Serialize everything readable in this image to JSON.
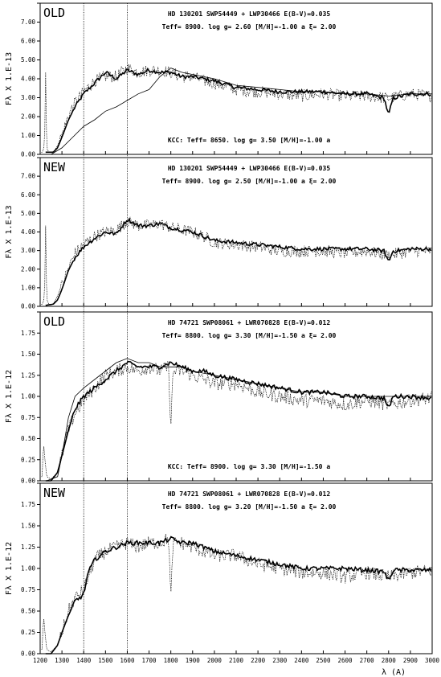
{
  "chart_data": {
    "type": "line",
    "xlabel": "λ (A)",
    "xlim": [
      1200,
      3000
    ],
    "x_ticks": [
      "1200",
      "1300",
      "1400",
      "1500",
      "1600",
      "1700",
      "1800",
      "1900",
      "2000",
      "2100",
      "2200",
      "2300",
      "2400",
      "2500",
      "2600",
      "2700",
      "2800",
      "2900",
      "3000"
    ],
    "vlines": [
      1400,
      1600
    ],
    "panels": [
      {
        "tag": "OLD",
        "ylabel": [
          "F",
          "λ",
          "X",
          "1.E-13"
        ],
        "ylim": [
          0,
          7
        ],
        "y_ticks": [
          "0.00",
          "1.00",
          "2.00",
          "3.00",
          "4.00",
          "5.00",
          "6.00",
          "7.00"
        ],
        "info": [
          "HD 130201 SWP54449 + LWP30466  E(B-V)=0.035",
          "Teff=  8900.  log g= 2.60 [M/H]=-1.00 a  ξ= 2.00"
        ],
        "kcc": "KCC: Teff=  8650. log g= 3.50 [M/H]=-1.00 a",
        "series": [
          {
            "style": "model-thick",
            "x": [
              1225,
              1260,
              1280,
              1300,
              1330,
              1360,
              1400,
              1450,
              1500,
              1550,
              1600,
              1650,
              1700,
              1750,
              1800,
              1850,
              1900,
              1950,
              2000,
              2100,
              2200,
              2300,
              2400,
              2500,
              2600,
              2700,
              2780,
              2800,
              2820,
              2900,
              3000
            ],
            "y": [
              0.1,
              0.1,
              0.3,
              0.8,
              1.6,
              2.2,
              2.8,
              3.3,
              3.8,
              3.5,
              3.9,
              3.7,
              3.9,
              3.8,
              3.8,
              3.6,
              3.6,
              3.5,
              3.4,
              3.1,
              3.0,
              2.9,
              2.9,
              2.9,
              2.8,
              2.8,
              2.6,
              1.8,
              2.6,
              2.8,
              2.8
            ]
          },
          {
            "style": "observed-dotted",
            "x": [
              1210,
              1220,
              1225,
              1230,
              1240,
              1260,
              1280,
              1300,
              1330,
              1360,
              1400,
              1450,
              1500,
              1550,
              1600,
              1650,
              1700,
              1750,
              1800,
              1850,
              1900,
              1950,
              2000,
              2100,
              2200,
              2300,
              2400,
              2500,
              2600,
              2700,
              2800,
              2900,
              3000
            ],
            "y": [
              0.1,
              0.4,
              3.8,
              0.3,
              0.1,
              0.1,
              0.4,
              0.9,
              1.8,
              2.4,
              2.9,
              3.4,
              3.6,
              3.6,
              4.0,
              3.8,
              3.9,
              3.9,
              3.8,
              3.6,
              3.6,
              3.4,
              3.3,
              3.0,
              2.9,
              2.8,
              2.7,
              2.8,
              2.7,
              2.7,
              2.6,
              2.8,
              2.7
            ]
          },
          {
            "style": "kcc-thin",
            "x": [
              1250,
              1300,
              1350,
              1400,
              1450,
              1500,
              1550,
              1600,
              1650,
              1700,
              1750,
              1800,
              1850,
              1900,
              2000,
              2100,
              2200,
              2300,
              2400,
              2500,
              2600,
              2700,
              2800,
              2900,
              3000
            ],
            "y": [
              0.0,
              0.3,
              0.8,
              1.3,
              1.6,
              2.0,
              2.2,
              2.5,
              2.8,
              3.0,
              3.6,
              4.0,
              3.8,
              3.7,
              3.5,
              3.2,
              3.1,
              3.0,
              2.9,
              2.9,
              2.8,
              2.8,
              2.7,
              2.8,
              2.8
            ]
          }
        ]
      },
      {
        "tag": "NEW",
        "ylabel": [
          "F",
          "λ",
          "X",
          "1.E-13"
        ],
        "ylim": [
          0,
          7
        ],
        "y_ticks": [
          "0.00",
          "1.00",
          "2.00",
          "3.00",
          "4.00",
          "5.00",
          "6.00",
          "7.00"
        ],
        "info": [
          "HD 130201 SWP54449 + LWP30466  E(B-V)=0.035",
          "Teff=  8900.  log g= 2.50 [M/H]=-1.00 a  ξ= 2.00"
        ],
        "kcc": "",
        "series": [
          {
            "style": "model-thick",
            "x": [
              1225,
              1260,
              1280,
              1300,
              1330,
              1360,
              1400,
              1450,
              1500,
              1550,
              1600,
              1650,
              1700,
              1750,
              1800,
              1850,
              1900,
              1950,
              2000,
              2100,
              2200,
              2300,
              2400,
              2500,
              2600,
              2700,
              2780,
              2800,
              2820,
              2900,
              3000
            ],
            "y": [
              0.05,
              0.1,
              0.3,
              0.8,
              1.7,
              2.3,
              2.8,
              3.2,
              3.5,
              3.4,
              4.1,
              3.8,
              3.8,
              3.9,
              3.7,
              3.6,
              3.5,
              3.3,
              3.1,
              3.0,
              2.9,
              2.8,
              2.7,
              2.7,
              2.7,
              2.7,
              2.6,
              2.1,
              2.6,
              2.7,
              2.7
            ]
          },
          {
            "style": "observed-dotted",
            "x": [
              1210,
              1220,
              1225,
              1230,
              1240,
              1260,
              1280,
              1300,
              1330,
              1360,
              1400,
              1450,
              1500,
              1550,
              1600,
              1650,
              1700,
              1750,
              1800,
              1850,
              1900,
              1950,
              2000,
              2100,
              2200,
              2300,
              2400,
              2500,
              2600,
              2700,
              2800,
              2900,
              3000
            ],
            "y": [
              0.1,
              0.4,
              3.8,
              0.3,
              0.1,
              0.1,
              0.5,
              1.0,
              1.8,
              2.5,
              2.9,
              3.3,
              3.5,
              3.6,
              4.0,
              3.8,
              3.8,
              3.9,
              3.7,
              3.6,
              3.5,
              3.3,
              3.0,
              2.9,
              2.8,
              2.6,
              2.6,
              2.6,
              2.5,
              2.6,
              2.4,
              2.6,
              2.6
            ]
          }
        ]
      },
      {
        "tag": "OLD",
        "ylabel": [
          "F",
          "λ",
          "X",
          "1.E-12"
        ],
        "ylim": [
          0,
          2
        ],
        "y_ticks": [
          "0.00",
          "0.25",
          "0.50",
          "0.75",
          "1.00",
          "1.25",
          "1.50",
          "1.75"
        ],
        "info": [
          "HD 74721 SWP08061 + LWR070828  E(B-V)=0.012",
          "Teff=  8800.  log g= 3.30 [M/H]=-1.50 a  ξ= 2.00"
        ],
        "kcc": "KCC: Teff=  8900. log g= 3.30 [M/H]=-1.50 a",
        "series": [
          {
            "style": "model-thick",
            "x": [
              1225,
              1250,
              1280,
              1300,
              1330,
              1360,
              1400,
              1450,
              1500,
              1550,
              1600,
              1650,
              1700,
              1750,
              1800,
              1850,
              1900,
              1950,
              2000,
              2100,
              2200,
              2300,
              2400,
              2500,
              2600,
              2700,
              2780,
              2800,
              2820,
              2900,
              3000
            ],
            "y": [
              0.0,
              0.0,
              0.1,
              0.3,
              0.6,
              0.85,
              1.0,
              1.1,
              1.2,
              1.3,
              1.4,
              1.35,
              1.35,
              1.35,
              1.4,
              1.35,
              1.3,
              1.3,
              1.25,
              1.2,
              1.15,
              1.1,
              1.05,
              1.05,
              1.0,
              1.0,
              0.98,
              0.85,
              1.0,
              1.0,
              0.98
            ]
          },
          {
            "style": "observed-dotted",
            "x": [
              1210,
              1215,
              1220,
              1230,
              1250,
              1280,
              1300,
              1330,
              1360,
              1400,
              1450,
              1500,
              1550,
              1600,
              1650,
              1700,
              1750,
              1790,
              1800,
              1810,
              1850,
              1900,
              1950,
              2000,
              2100,
              2200,
              2300,
              2400,
              2500,
              2600,
              2700,
              2800,
              2900,
              3000
            ],
            "y": [
              0.05,
              0.48,
              0.3,
              0.05,
              0.02,
              0.1,
              0.3,
              0.6,
              0.8,
              0.95,
              1.1,
              1.25,
              1.3,
              1.35,
              1.3,
              1.35,
              1.3,
              1.35,
              0.6,
              1.3,
              1.3,
              1.25,
              1.2,
              1.15,
              1.15,
              1.05,
              1.0,
              0.95,
              0.95,
              0.9,
              0.95,
              0.9,
              0.95,
              0.98
            ]
          },
          {
            "style": "kcc-thin",
            "x": [
              1230,
              1280,
              1300,
              1330,
              1360,
              1400,
              1450,
              1500,
              1550,
              1600,
              1650,
              1700,
              1750,
              1800,
              1850,
              1900,
              2000,
              2100,
              2200,
              2300,
              2400,
              2500,
              2600,
              2700,
              2800,
              2900,
              3000
            ],
            "y": [
              0.0,
              0.05,
              0.3,
              0.75,
              1.0,
              1.1,
              1.2,
              1.3,
              1.4,
              1.45,
              1.4,
              1.4,
              1.35,
              1.35,
              1.35,
              1.3,
              1.25,
              1.2,
              1.15,
              1.1,
              1.05,
              1.05,
              1.0,
              1.0,
              1.0,
              1.0,
              1.0
            ]
          }
        ]
      },
      {
        "tag": "NEW",
        "ylabel": [
          "F",
          "λ",
          "X",
          "1.E-12"
        ],
        "ylim": [
          0,
          2
        ],
        "y_ticks": [
          "0.00",
          "0.25",
          "0.50",
          "0.75",
          "1.00",
          "1.25",
          "1.50",
          "1.75"
        ],
        "info": [
          "HD 74721 SWP08061 + LWR070828  E(B-V)=0.012",
          "Teff=  8800.  log g= 3.20 [M/H]=-1.50 a  ξ= 2.00"
        ],
        "kcc": "",
        "series": [
          {
            "style": "model-thick",
            "x": [
              1225,
              1250,
              1280,
              1300,
              1330,
              1360,
              1380,
              1400,
              1420,
              1450,
              1500,
              1550,
              1600,
              1650,
              1700,
              1750,
              1800,
              1850,
              1900,
              1950,
              2000,
              2100,
              2200,
              2300,
              2400,
              2500,
              2600,
              2700,
              2780,
              2800,
              2820,
              2900,
              3000
            ],
            "y": [
              0.0,
              0.0,
              0.1,
              0.25,
              0.45,
              0.62,
              0.65,
              0.7,
              0.95,
              1.1,
              1.2,
              1.25,
              1.3,
              1.3,
              1.3,
              1.3,
              1.35,
              1.3,
              1.3,
              1.25,
              1.2,
              1.15,
              1.1,
              1.05,
              1.0,
              1.0,
              1.0,
              0.98,
              0.96,
              0.85,
              0.98,
              0.98,
              0.98
            ]
          },
          {
            "style": "observed-dotted",
            "x": [
              1210,
              1215,
              1220,
              1230,
              1250,
              1280,
              1300,
              1330,
              1360,
              1400,
              1450,
              1500,
              1550,
              1600,
              1650,
              1700,
              1750,
              1790,
              1800,
              1810,
              1850,
              1900,
              1950,
              2000,
              2100,
              2200,
              2300,
              2400,
              2500,
              2600,
              2700,
              2800,
              2900,
              3000
            ],
            "y": [
              0.05,
              0.48,
              0.3,
              0.05,
              0.02,
              0.1,
              0.25,
              0.5,
              0.65,
              0.75,
              1.1,
              1.2,
              1.25,
              1.3,
              1.25,
              1.3,
              1.3,
              1.35,
              0.6,
              1.3,
              1.3,
              1.25,
              1.2,
              1.15,
              1.15,
              1.05,
              1.0,
              0.95,
              0.95,
              0.9,
              0.95,
              0.9,
              0.95,
              0.98
            ]
          }
        ]
      }
    ]
  }
}
